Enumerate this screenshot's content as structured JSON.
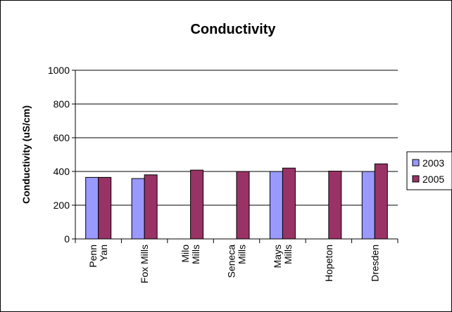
{
  "chart_data": {
    "type": "bar",
    "title": "Conductivity",
    "xlabel": "",
    "ylabel": "Conductivity (uS/cm)",
    "ylim": [
      0,
      1000
    ],
    "yticks": [
      0,
      200,
      400,
      600,
      800,
      1000
    ],
    "grid": true,
    "legend_position": "right",
    "categories": [
      [
        "Penn",
        "Yan"
      ],
      [
        "Fox Mills"
      ],
      [
        "Milo",
        "Mills"
      ],
      [
        "Seneca",
        "Mills"
      ],
      [
        "Mays",
        "Mills"
      ],
      [
        "Hopeton"
      ],
      [
        "Dresden"
      ]
    ],
    "series": [
      {
        "name": "2003",
        "color": "#9999ff",
        "values": [
          365,
          358,
          null,
          null,
          400,
          null,
          400
        ]
      },
      {
        "name": "2005",
        "color": "#993366",
        "values": [
          365,
          380,
          408,
          400,
          420,
          402,
          445
        ]
      }
    ]
  }
}
